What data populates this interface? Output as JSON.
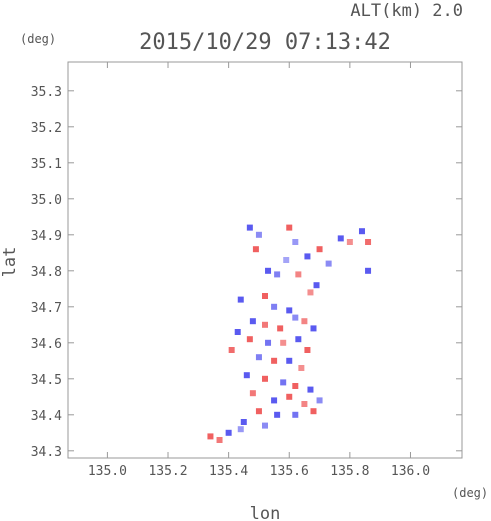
{
  "header": {
    "alt_label": "ALT(km)  2.0",
    "datetime": "2015/10/29 07:13:42"
  },
  "axes": {
    "y_unit": "(deg)",
    "x_unit": "(deg)",
    "xlabel": "lon",
    "ylabel": "lat"
  },
  "chart_data": {
    "type": "heatmap",
    "title": "2015/10/29 07:13:42",
    "xlabel": "lon",
    "ylabel": "lat",
    "xlim": [
      134.87,
      136.17
    ],
    "ylim": [
      34.28,
      35.38
    ],
    "xticks": [
      135.0,
      135.2,
      135.4,
      135.6,
      135.8,
      136.0
    ],
    "xtick_labels": [
      "135.0",
      "135.2",
      "135.4",
      "135.6",
      "135.8",
      "136.0"
    ],
    "yticks": [
      34.3,
      34.4,
      34.5,
      34.6,
      34.7,
      34.8,
      34.9,
      35.0,
      35.1,
      35.2,
      35.3
    ],
    "ytick_labels": [
      "34.3",
      "34.4",
      "34.5",
      "34.6",
      "34.7",
      "34.8",
      "34.9",
      "35.0",
      "35.1",
      "35.2",
      "35.3"
    ],
    "grid": false,
    "colors": {
      "positive": "#f06060",
      "negative": "#5a5af0",
      "frame": "#999999"
    },
    "cells": [
      {
        "lon": 135.47,
        "lat": 34.92,
        "v": -1
      },
      {
        "lon": 135.5,
        "lat": 34.9,
        "v": -0.6
      },
      {
        "lon": 135.49,
        "lat": 34.86,
        "v": 1
      },
      {
        "lon": 135.6,
        "lat": 34.92,
        "v": 1
      },
      {
        "lon": 135.62,
        "lat": 34.88,
        "v": -0.5
      },
      {
        "lon": 135.53,
        "lat": 34.8,
        "v": -1
      },
      {
        "lon": 135.56,
        "lat": 34.79,
        "v": -0.7
      },
      {
        "lon": 135.59,
        "lat": 34.83,
        "v": -0.4
      },
      {
        "lon": 135.63,
        "lat": 34.79,
        "v": 0.7
      },
      {
        "lon": 135.66,
        "lat": 34.84,
        "v": -1
      },
      {
        "lon": 135.7,
        "lat": 34.86,
        "v": 1
      },
      {
        "lon": 135.73,
        "lat": 34.82,
        "v": -0.6
      },
      {
        "lon": 135.77,
        "lat": 34.89,
        "v": -1
      },
      {
        "lon": 135.8,
        "lat": 34.88,
        "v": 0.6
      },
      {
        "lon": 135.84,
        "lat": 34.91,
        "v": -1
      },
      {
        "lon": 135.86,
        "lat": 34.88,
        "v": 0.9
      },
      {
        "lon": 135.86,
        "lat": 34.8,
        "v": -1
      },
      {
        "lon": 135.69,
        "lat": 34.76,
        "v": -1
      },
      {
        "lon": 135.67,
        "lat": 34.74,
        "v": 0.6
      },
      {
        "lon": 135.52,
        "lat": 34.73,
        "v": 1
      },
      {
        "lon": 135.44,
        "lat": 34.72,
        "v": -1
      },
      {
        "lon": 135.55,
        "lat": 34.7,
        "v": -0.7
      },
      {
        "lon": 135.6,
        "lat": 34.69,
        "v": -1
      },
      {
        "lon": 135.48,
        "lat": 34.66,
        "v": -1
      },
      {
        "lon": 135.52,
        "lat": 34.65,
        "v": 0.8
      },
      {
        "lon": 135.57,
        "lat": 34.64,
        "v": 1
      },
      {
        "lon": 135.62,
        "lat": 34.67,
        "v": -0.6
      },
      {
        "lon": 135.65,
        "lat": 34.66,
        "v": 0.7
      },
      {
        "lon": 135.68,
        "lat": 34.64,
        "v": -1
      },
      {
        "lon": 135.43,
        "lat": 34.63,
        "v": -1
      },
      {
        "lon": 135.47,
        "lat": 34.61,
        "v": 1
      },
      {
        "lon": 135.53,
        "lat": 34.6,
        "v": -0.8
      },
      {
        "lon": 135.58,
        "lat": 34.6,
        "v": 0.6
      },
      {
        "lon": 135.63,
        "lat": 34.61,
        "v": -1
      },
      {
        "lon": 135.66,
        "lat": 34.58,
        "v": 1
      },
      {
        "lon": 135.41,
        "lat": 34.58,
        "v": 0.9
      },
      {
        "lon": 135.5,
        "lat": 34.56,
        "v": -0.7
      },
      {
        "lon": 135.55,
        "lat": 34.55,
        "v": 1
      },
      {
        "lon": 135.6,
        "lat": 34.55,
        "v": -1
      },
      {
        "lon": 135.64,
        "lat": 34.53,
        "v": 0.6
      },
      {
        "lon": 135.46,
        "lat": 34.51,
        "v": -1
      },
      {
        "lon": 135.52,
        "lat": 34.5,
        "v": 1
      },
      {
        "lon": 135.58,
        "lat": 34.49,
        "v": -0.8
      },
      {
        "lon": 135.62,
        "lat": 34.48,
        "v": 1
      },
      {
        "lon": 135.67,
        "lat": 34.47,
        "v": -1
      },
      {
        "lon": 135.48,
        "lat": 34.46,
        "v": 0.8
      },
      {
        "lon": 135.55,
        "lat": 34.44,
        "v": -1
      },
      {
        "lon": 135.6,
        "lat": 34.45,
        "v": 1
      },
      {
        "lon": 135.65,
        "lat": 34.43,
        "v": 0.7
      },
      {
        "lon": 135.7,
        "lat": 34.44,
        "v": -0.6
      },
      {
        "lon": 135.5,
        "lat": 34.41,
        "v": 1
      },
      {
        "lon": 135.56,
        "lat": 34.4,
        "v": -1
      },
      {
        "lon": 135.62,
        "lat": 34.4,
        "v": -0.8
      },
      {
        "lon": 135.68,
        "lat": 34.41,
        "v": 1
      },
      {
        "lon": 135.45,
        "lat": 34.38,
        "v": -1
      },
      {
        "lon": 135.52,
        "lat": 34.37,
        "v": -0.6
      },
      {
        "lon": 135.4,
        "lat": 34.35,
        "v": -1
      },
      {
        "lon": 135.34,
        "lat": 34.34,
        "v": 1
      },
      {
        "lon": 135.37,
        "lat": 34.33,
        "v": 0.8
      },
      {
        "lon": 135.44,
        "lat": 34.36,
        "v": -0.5
      }
    ]
  }
}
